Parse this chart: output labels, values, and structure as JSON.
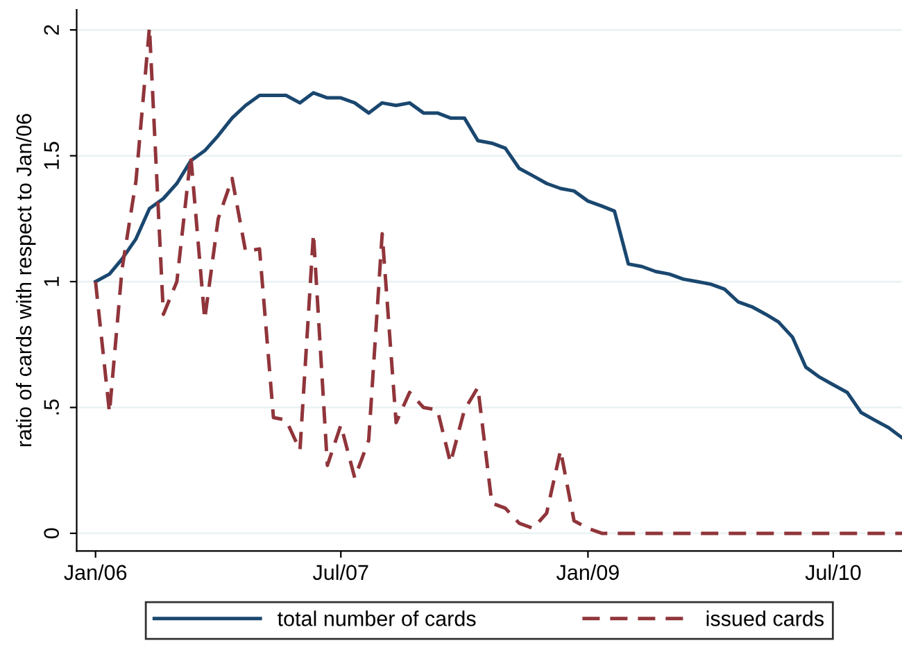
{
  "chart_data": {
    "type": "line",
    "ylabel": "ratio of cards with respect to Jan/06",
    "x": [
      "2006-01",
      "2006-02",
      "2006-03",
      "2006-04",
      "2006-05",
      "2006-06",
      "2006-07",
      "2006-08",
      "2006-09",
      "2006-10",
      "2006-11",
      "2006-12",
      "2007-01",
      "2007-02",
      "2007-03",
      "2007-04",
      "2007-05",
      "2007-06",
      "2007-07",
      "2007-08",
      "2007-09",
      "2007-10",
      "2007-11",
      "2007-12",
      "2008-01",
      "2008-02",
      "2008-03",
      "2008-04",
      "2008-05",
      "2008-06",
      "2008-07",
      "2008-08",
      "2008-09",
      "2008-10",
      "2008-11",
      "2008-12",
      "2009-01",
      "2009-02",
      "2009-03",
      "2009-04",
      "2009-05",
      "2009-06",
      "2009-07",
      "2009-08",
      "2009-09",
      "2009-10",
      "2009-11",
      "2009-12",
      "2010-01",
      "2010-02",
      "2010-03",
      "2010-04",
      "2010-05",
      "2010-06",
      "2010-07",
      "2010-08",
      "2010-09",
      "2010-10",
      "2010-11",
      "2010-12"
    ],
    "series": [
      {
        "name": "total number of cards",
        "color": "#1a476f",
        "line_style": "solid",
        "values": [
          1.0,
          1.03,
          1.09,
          1.17,
          1.29,
          1.33,
          1.39,
          1.48,
          1.52,
          1.58,
          1.65,
          1.7,
          1.74,
          1.74,
          1.74,
          1.71,
          1.75,
          1.73,
          1.73,
          1.71,
          1.67,
          1.71,
          1.7,
          1.71,
          1.67,
          1.67,
          1.65,
          1.65,
          1.56,
          1.55,
          1.53,
          1.45,
          1.42,
          1.39,
          1.37,
          1.36,
          1.32,
          1.3,
          1.28,
          1.07,
          1.06,
          1.04,
          1.03,
          1.01,
          1.0,
          0.99,
          0.97,
          0.92,
          0.9,
          0.87,
          0.84,
          0.78,
          0.66,
          0.62,
          0.59,
          0.56,
          0.48,
          0.45,
          0.42,
          0.38
        ]
      },
      {
        "name": "issued cards",
        "color": "#90353b",
        "line_style": "dashed",
        "values": [
          1.0,
          0.48,
          1.05,
          1.4,
          2.01,
          0.87,
          1.0,
          1.5,
          0.85,
          1.25,
          1.41,
          1.12,
          1.13,
          0.46,
          0.45,
          0.33,
          1.19,
          0.27,
          0.43,
          0.22,
          0.37,
          1.19,
          0.44,
          0.56,
          0.5,
          0.49,
          0.28,
          0.49,
          0.58,
          0.12,
          0.1,
          0.04,
          0.02,
          0.08,
          0.33,
          0.05,
          0.02,
          0,
          0,
          0,
          0,
          0,
          0,
          0,
          0,
          0,
          0,
          0,
          0,
          0,
          0,
          0,
          0,
          0,
          0,
          0,
          0,
          0,
          0,
          0
        ]
      }
    ],
    "xlim": [
      "2005-11-20",
      "2010-12-01"
    ],
    "xticks": [
      {
        "value": "2006-01",
        "label": "Jan/06"
      },
      {
        "value": "2007-07",
        "label": "Jul/07"
      },
      {
        "value": "2009-01",
        "label": "Jan/09"
      },
      {
        "value": "2010-07",
        "label": "Jul/10"
      }
    ],
    "ylim": [
      -0.07,
      2.08
    ],
    "yticks": [
      0,
      {
        "value": 0.5,
        "label": ".5"
      },
      1,
      1.5,
      2
    ],
    "grid": "y",
    "legend": "bottom"
  }
}
